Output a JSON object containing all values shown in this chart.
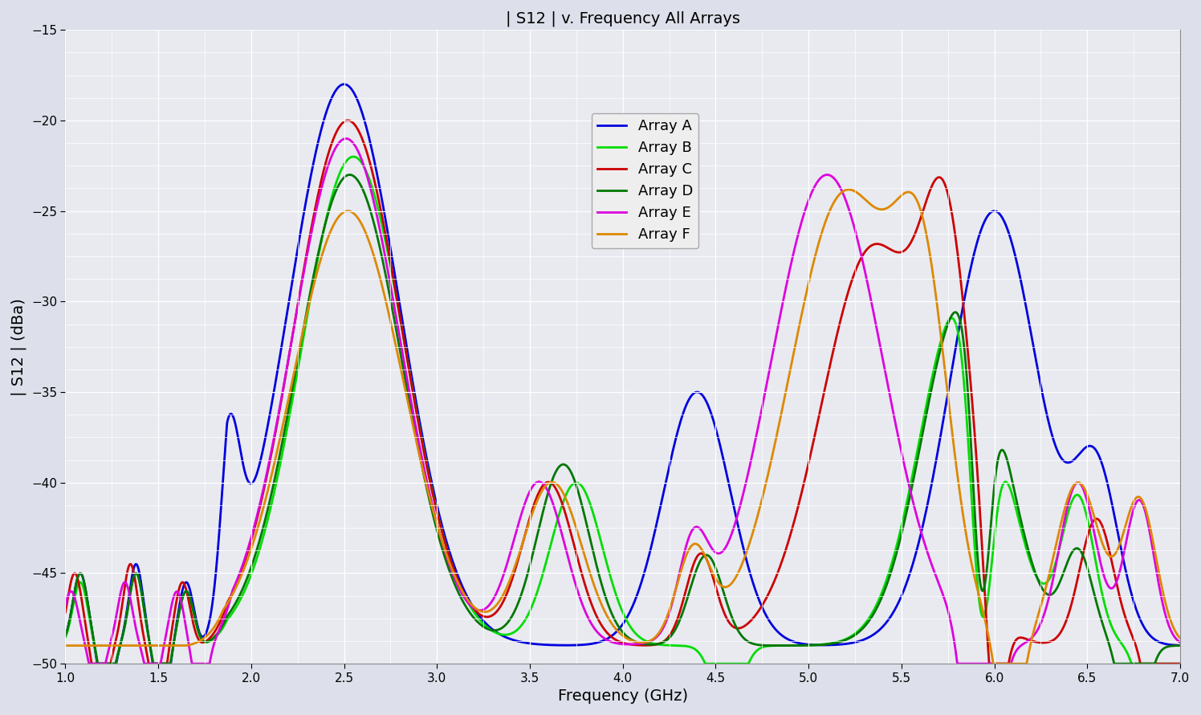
{
  "title": "| S12 | v. Frequency All Arrays",
  "xlabel": "Frequency (GHz)",
  "ylabel": "| S12 | (dBa)",
  "xlim": [
    1,
    7
  ],
  "ylim": [
    -50,
    -15
  ],
  "xticks": [
    1,
    1.5,
    2,
    2.5,
    3,
    3.5,
    4,
    4.5,
    5,
    5.5,
    6,
    6.5,
    7
  ],
  "yticks": [
    -50,
    -45,
    -40,
    -35,
    -30,
    -25,
    -20,
    -15
  ],
  "background_color": "#e8eaf0",
  "fig_background": "#dde0ea",
  "grid_color": "#ffffff",
  "legend_labels": [
    "Array A",
    "Array B",
    "Array C",
    "Array D",
    "Array E",
    "Array F"
  ],
  "line_colors": [
    "#0000dd",
    "#00dd00",
    "#cc0000",
    "#007700",
    "#dd00dd",
    "#dd8800"
  ],
  "line_width": 2.0
}
